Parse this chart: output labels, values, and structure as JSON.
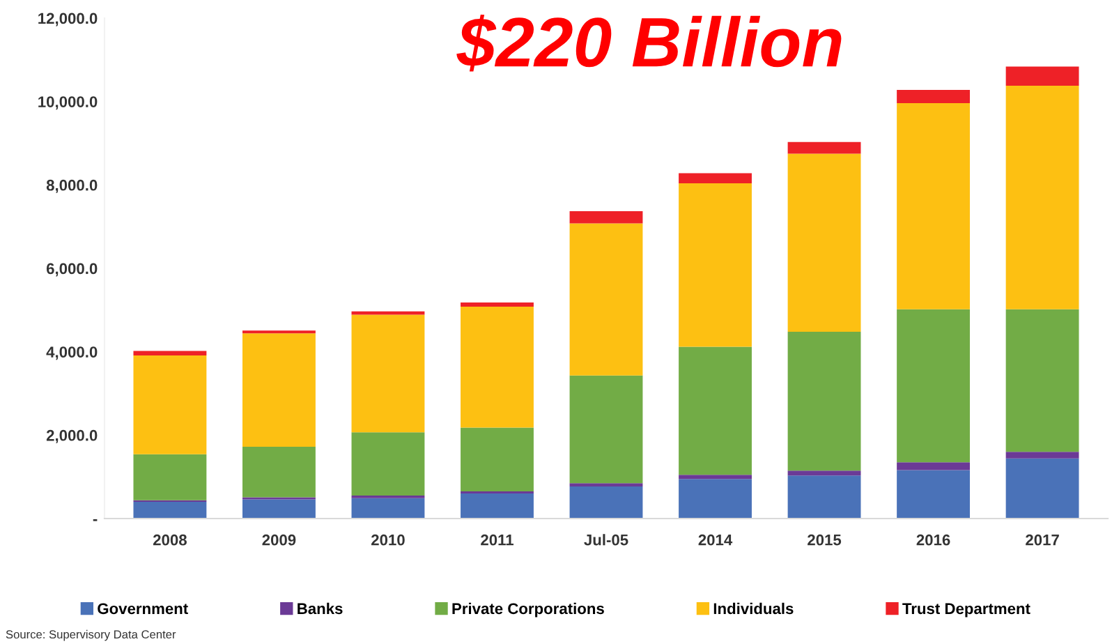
{
  "chart_data": {
    "type": "bar",
    "stacked": true,
    "title": "$220 Billion",
    "categories": [
      "2008",
      "2009",
      "2010",
      "2011",
      "Jul-05",
      "2014",
      "2015",
      "2016",
      "2017"
    ],
    "series": [
      {
        "name": "Government",
        "color": "#4a72b8",
        "values": [
          400,
          460,
          490,
          600,
          770,
          950,
          1030,
          1160,
          1440
        ]
      },
      {
        "name": "Banks",
        "color": "#6b3a96",
        "values": [
          40,
          50,
          60,
          50,
          80,
          100,
          120,
          190,
          160
        ]
      },
      {
        "name": "Private Corporations",
        "color": "#72ac46",
        "values": [
          1100,
          1210,
          1520,
          1530,
          2580,
          3070,
          3330,
          3670,
          3420
        ]
      },
      {
        "name": "Individuals",
        "color": "#fdc012",
        "values": [
          2370,
          2720,
          2820,
          2900,
          3650,
          3920,
          4270,
          4940,
          5360
        ]
      },
      {
        "name": "Trust Department",
        "color": "#ee2127",
        "values": [
          110,
          70,
          80,
          100,
          290,
          240,
          280,
          320,
          460
        ]
      }
    ],
    "ylim": [
      0,
      12000
    ],
    "yticks": [
      {
        "value": 0,
        "label": "-"
      },
      {
        "value": 2000,
        "label": "2,000.0"
      },
      {
        "value": 4000,
        "label": "4,000.0"
      },
      {
        "value": 6000,
        "label": "6,000.0"
      },
      {
        "value": 8000,
        "label": "8,000.0"
      },
      {
        "value": 10000,
        "label": "10,000.0"
      },
      {
        "value": 12000,
        "label": "12,000.0"
      }
    ],
    "grid": false,
    "legend": "bottom",
    "annotations": [
      "Source: Supervisory Data Center"
    ]
  }
}
